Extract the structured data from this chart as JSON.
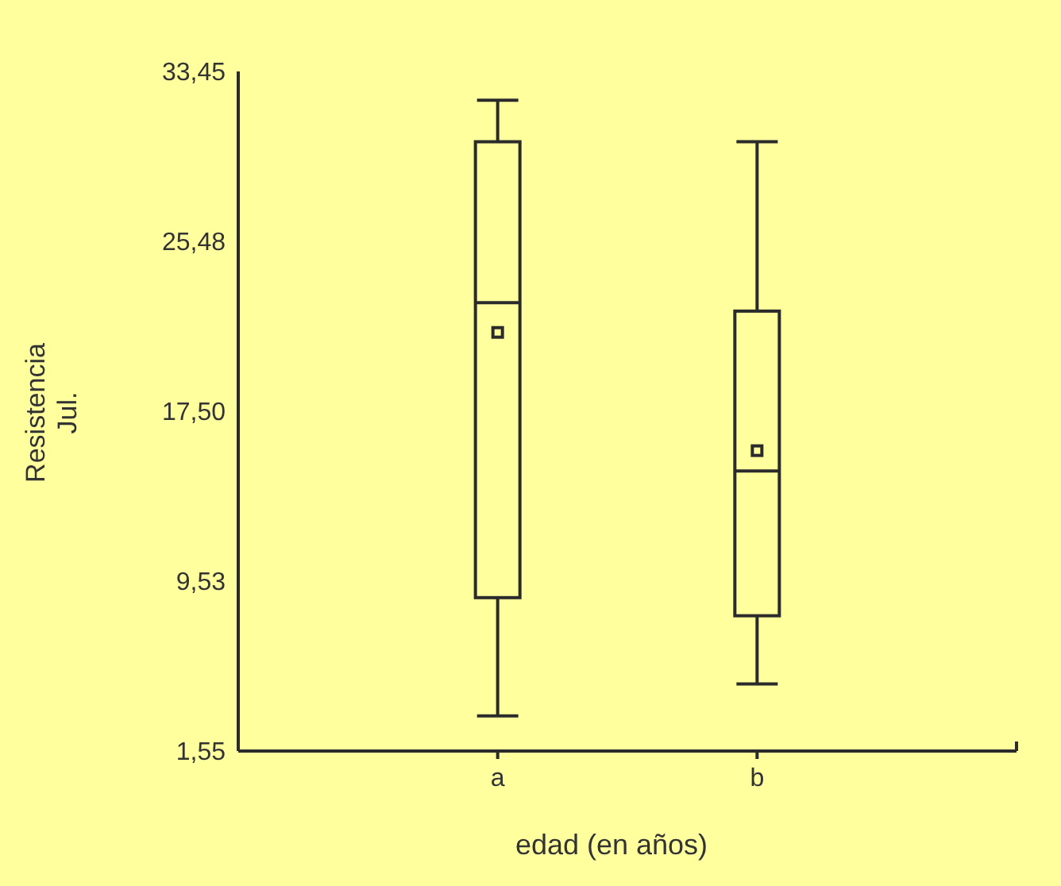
{
  "chart_data": {
    "type": "box",
    "xlabel": "edad (en años)",
    "ylabel": "Resistencia\nJul.",
    "categories": [
      "a",
      "b"
    ],
    "boxes": [
      {
        "low": 3.2,
        "q1": 8.75,
        "median": 22.6,
        "q3": 30.15,
        "high": 32.1,
        "mean": 21.2
      },
      {
        "low": 4.7,
        "q1": 7.9,
        "median": 14.7,
        "q3": 22.2,
        "high": 30.15,
        "mean": 15.65
      }
    ],
    "color": "#2b2b2b",
    "ylim": [
      1.55,
      33.45
    ],
    "yticks": [
      {
        "value": 1.55,
        "label": "1,55"
      },
      {
        "value": 9.53,
        "label": "9,53"
      },
      {
        "value": 17.5,
        "label": "17,50"
      },
      {
        "value": 25.48,
        "label": "25,48"
      },
      {
        "value": 33.45,
        "label": "33,45"
      }
    ],
    "grid": false
  }
}
